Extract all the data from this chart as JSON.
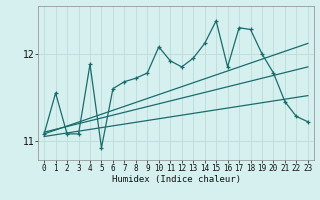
{
  "xlabel": "Humidex (Indice chaleur)",
  "background_color": "#d6f0f0",
  "line_color": "#1a6b6b",
  "grid_color": "#c0dede",
  "xlim": [
    -0.5,
    23.5
  ],
  "ylim": [
    10.78,
    12.55
  ],
  "yticks": [
    11,
    12
  ],
  "xticks": [
    0,
    1,
    2,
    3,
    4,
    5,
    6,
    7,
    8,
    9,
    10,
    11,
    12,
    13,
    14,
    15,
    16,
    17,
    18,
    19,
    20,
    21,
    22,
    23
  ],
  "main_x": [
    0,
    1,
    2,
    3,
    4,
    5,
    6,
    7,
    8,
    9,
    10,
    11,
    12,
    13,
    14,
    15,
    16,
    17,
    18,
    19,
    20,
    21,
    22,
    23
  ],
  "main_y": [
    11.08,
    11.55,
    11.08,
    11.08,
    11.88,
    10.92,
    11.6,
    11.68,
    11.72,
    11.78,
    12.08,
    11.92,
    11.85,
    11.95,
    12.12,
    12.38,
    11.85,
    12.3,
    12.28,
    12.0,
    11.78,
    11.45,
    11.28,
    11.22
  ],
  "line1_x": [
    0,
    23
  ],
  "line1_y": [
    11.1,
    11.85
  ],
  "line2_x": [
    0,
    23
  ],
  "line2_y": [
    11.08,
    12.12
  ],
  "line3_x": [
    0,
    23
  ],
  "line3_y": [
    11.05,
    11.52
  ]
}
